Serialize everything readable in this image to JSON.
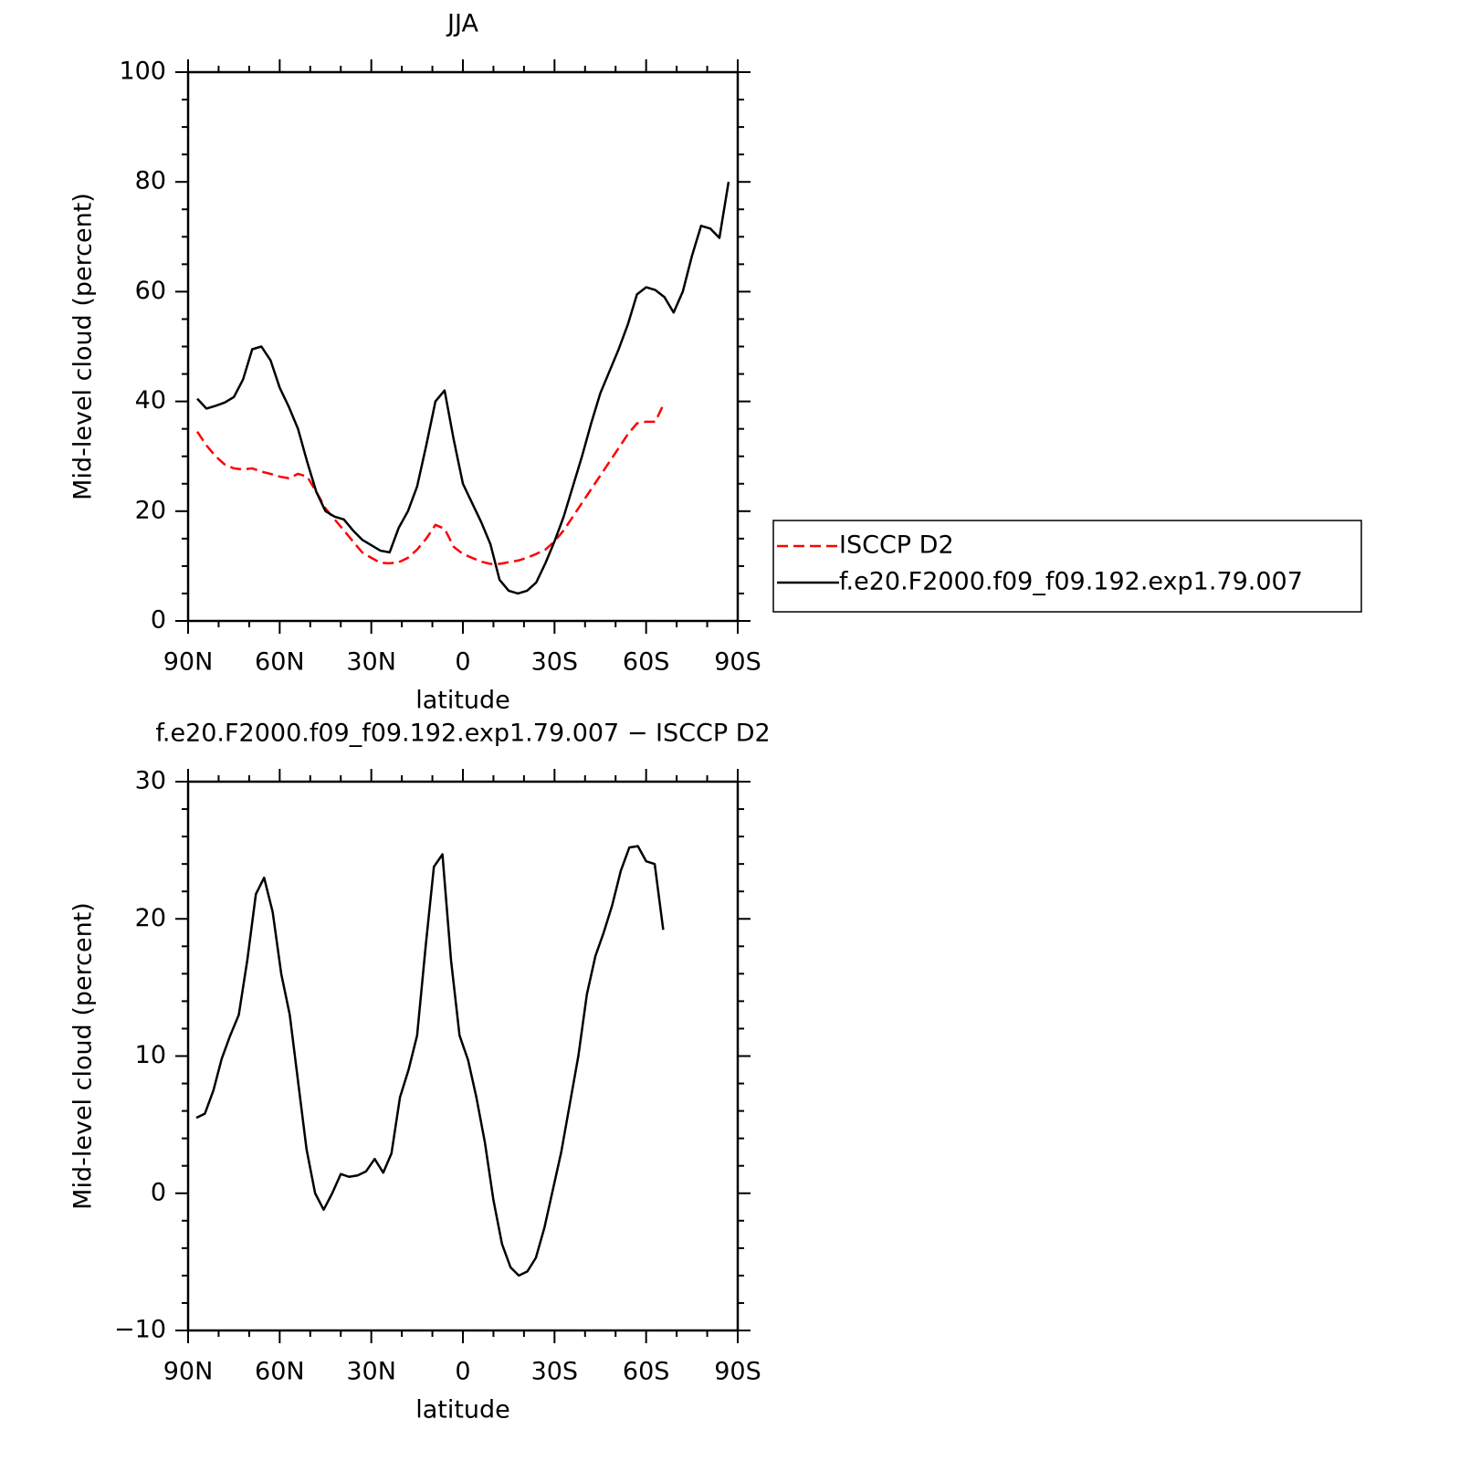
{
  "chart_data": [
    {
      "type": "line",
      "title": "JJA",
      "x_label": "latitude",
      "y_label": "Mid-level cloud (percent)",
      "x": [
        87,
        84,
        81,
        78,
        75,
        72,
        69,
        66,
        63,
        60,
        57,
        54,
        51,
        48,
        45,
        42,
        39,
        36,
        33,
        30,
        27,
        24,
        21,
        18,
        15,
        12,
        9,
        6,
        3,
        0,
        -3,
        -6,
        -9,
        -12,
        -15,
        -18,
        -21,
        -24,
        -27,
        -30,
        -33,
        -36,
        -39,
        -42,
        -45,
        -48,
        -51,
        -54,
        -57,
        -60,
        -63,
        -66,
        -69,
        -72,
        -75,
        -78,
        -81,
        -84,
        -87
      ],
      "series": [
        {
          "name": "ISCCP D2",
          "color": "#ff0000",
          "line_style": "dashed",
          "values": [
            34.5,
            32,
            30,
            28.5,
            27.8,
            27.6,
            27.8,
            27.2,
            26.8,
            26.3,
            26,
            26.8,
            26.3,
            23.5,
            20.5,
            18.5,
            16.5,
            14.5,
            12.5,
            11.5,
            10.6,
            10.5,
            10.7,
            11.5,
            13,
            15,
            17.5,
            16.8,
            13.5,
            12.2,
            11.5,
            10.8,
            10.4,
            10.4,
            10.7,
            11,
            11.5,
            12.2,
            13,
            14.5,
            16.5,
            19,
            21.5,
            24,
            26.5,
            29,
            31.5,
            34,
            36,
            36.3,
            36.3,
            39.8,
            null,
            null,
            null,
            null,
            null,
            null,
            null
          ]
        },
        {
          "name": "f.e20.F2000.f09_f09.192.exp1.79.007",
          "color": "#000000",
          "line_style": "solid",
          "values": [
            40.5,
            38.7,
            39.2,
            39.8,
            40.8,
            44,
            49.5,
            50,
            47.5,
            42.5,
            39,
            35,
            29,
            23.5,
            20,
            19,
            18.5,
            16.5,
            14.8,
            13.8,
            12.8,
            12.5,
            17,
            20,
            24.5,
            32,
            40,
            42,
            33,
            25,
            21.5,
            18,
            14,
            7.5,
            5.5,
            5,
            5.5,
            7,
            10.5,
            14.5,
            19,
            24.5,
            30,
            36,
            41.5,
            45.5,
            49.5,
            54,
            59.5,
            60.8,
            60.3,
            59,
            56.2,
            60,
            66.5,
            72,
            71.5,
            69.8,
            80
          ]
        }
      ],
      "xlim": [
        90,
        -90
      ],
      "xticks": [
        {
          "value": 90,
          "label": "90N"
        },
        {
          "value": 60,
          "label": "60N"
        },
        {
          "value": 30,
          "label": "30N"
        },
        0,
        {
          "value": -30,
          "label": "30S"
        },
        {
          "value": -60,
          "label": "60S"
        },
        {
          "value": -90,
          "label": "90S"
        }
      ],
      "ylim": [
        0,
        100
      ],
      "yticks": [
        0,
        20,
        40,
        60,
        80,
        100
      ],
      "legend": "right"
    },
    {
      "type": "line",
      "title": "f.e20.F2000.f09_f09.192.exp1.79.007 − ISCCP D2",
      "x_label": "latitude",
      "y_label": "Mid-level cloud (percent)",
      "x": [
        87.3,
        84.5,
        81.7,
        79.0,
        76.2,
        73.4,
        70.6,
        67.8,
        65.1,
        62.3,
        59.5,
        56.7,
        53.9,
        51.2,
        48.4,
        45.6,
        42.8,
        40.0,
        37.3,
        34.5,
        31.7,
        28.9,
        26.1,
        23.4,
        20.6,
        17.8,
        15.0,
        12.2,
        9.5,
        6.7,
        3.9,
        1.1,
        -1.7,
        -4.4,
        -7.2,
        -10.0,
        -12.8,
        -15.6,
        -18.3,
        -21.1,
        -23.9,
        -26.7,
        -29.5,
        -32.2,
        -35.0,
        -37.8,
        -40.6,
        -43.4,
        -46.1,
        -48.9,
        -51.7,
        -54.5,
        -57.3,
        -60.0,
        -62.8,
        -65.6
      ],
      "series": [
        {
          "color": "#000000",
          "line_style": "solid",
          "values": [
            5.5,
            5.8,
            7.5,
            9.8,
            11.5,
            13,
            17,
            21.8,
            23,
            20.5,
            16,
            13,
            8,
            3.2,
            0,
            -1.2,
            0,
            1.4,
            1.2,
            1.3,
            1.6,
            2.5,
            1.5,
            2.9,
            7,
            9,
            11.5,
            18,
            23.8,
            24.7,
            17,
            11.5,
            9.7,
            7,
            3.7,
            -0.5,
            -3.7,
            -5.4,
            -6,
            -5.7,
            -4.7,
            -2.5,
            0.3,
            3,
            6.5,
            10,
            14.5,
            17.3,
            19,
            21,
            23.5,
            25.2,
            25.3,
            24.2,
            24,
            19.2
          ]
        }
      ],
      "xlim": [
        90,
        -90
      ],
      "xticks": [
        {
          "value": 90,
          "label": "90N"
        },
        {
          "value": 60,
          "label": "60N"
        },
        {
          "value": 30,
          "label": "30N"
        },
        0,
        {
          "value": -30,
          "label": "30S"
        },
        {
          "value": -60,
          "label": "60S"
        },
        {
          "value": -90,
          "label": "90S"
        }
      ],
      "ylim": [
        -10,
        30
      ],
      "yticks": [
        {
          "value": -10,
          "label": "−10"
        },
        0,
        10,
        20,
        30
      ]
    }
  ]
}
